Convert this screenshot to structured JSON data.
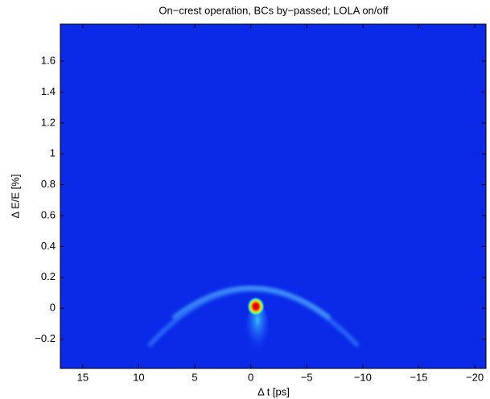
{
  "chart_data": {
    "type": "heatmap",
    "title": "On−crest operation, BCs by−passed; LOLA on/off",
    "xlabel": "Δ t [ps]",
    "ylabel": "Δ E/E [%]",
    "xlim": [
      17,
      -21
    ],
    "ylim": [
      -0.39,
      1.84
    ],
    "xticks": [
      15,
      10,
      5,
      0,
      {
        "value": -5,
        "label": "−5"
      },
      {
        "value": -10,
        "label": "−10"
      },
      {
        "value": -15,
        "label": "−15"
      },
      {
        "value": -20,
        "label": "−20"
      }
    ],
    "yticks": [
      {
        "value": -0.2,
        "label": "−0.2"
      },
      0,
      0.2,
      0.4,
      0.6,
      0.8,
      1,
      1.2,
      1.4,
      1.6
    ],
    "color": "#0a2ae8"
  }
}
